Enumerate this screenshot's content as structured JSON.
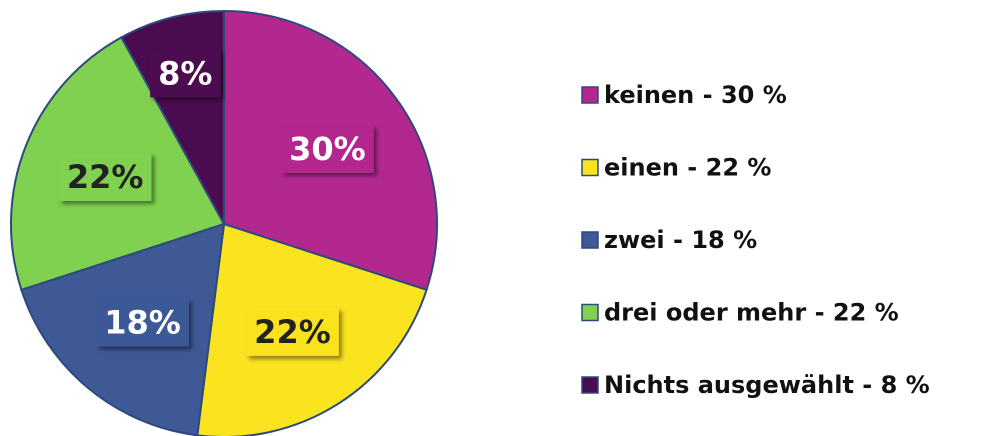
{
  "chart_data": {
    "type": "pie",
    "categories": [
      "keinen - 30 %",
      "einen - 22 %",
      "zwei - 18 %",
      "drei oder mehr - 22 %",
      "Nichts ausgewählt - 8 %"
    ],
    "values": [
      30,
      22,
      18,
      22,
      8
    ],
    "value_labels": [
      "30%",
      "22%",
      "18%",
      "22%",
      "8%"
    ],
    "colors": [
      "#b3288e",
      "#fae31f",
      "#3e5996",
      "#7fd14f",
      "#4b0b50"
    ],
    "legend": "right"
  }
}
